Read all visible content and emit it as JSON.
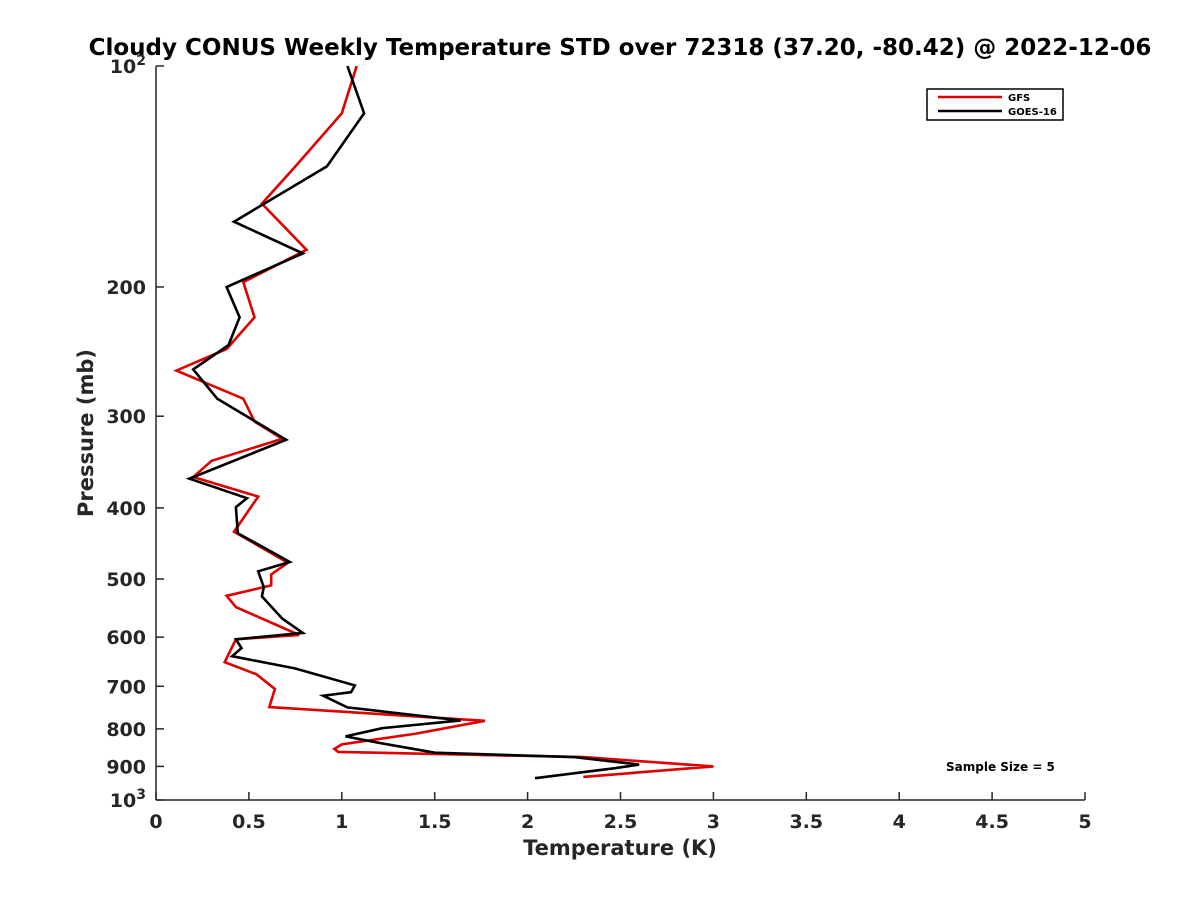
{
  "chart_data": {
    "type": "line",
    "title": "Cloudy CONUS Weekly Temperature STD over 72318 (37.20, -80.42) @ 2022-12-06",
    "xlabel": "Temperature (K)",
    "ylabel": "Pressure (mb)",
    "xlim": [
      0,
      5
    ],
    "ylim": [
      100,
      1000
    ],
    "y_scale": "log",
    "y_reversed": true,
    "x_ticks": [
      "0",
      "0.5",
      "1",
      "1.5",
      "2",
      "2.5",
      "3",
      "3.5",
      "4",
      "4.5",
      "5"
    ],
    "x_tick_values": [
      0,
      0.5,
      1,
      1.5,
      2,
      2.5,
      3,
      3.5,
      4,
      4.5,
      5
    ],
    "y_ticks": [
      {
        "value": 100,
        "label": "10",
        "sup": "2"
      },
      {
        "value": 200,
        "label": "200",
        "sup": ""
      },
      {
        "value": 300,
        "label": "300",
        "sup": ""
      },
      {
        "value": 400,
        "label": "400",
        "sup": ""
      },
      {
        "value": 500,
        "label": "500",
        "sup": ""
      },
      {
        "value": 600,
        "label": "600",
        "sup": ""
      },
      {
        "value": 700,
        "label": "700",
        "sup": ""
      },
      {
        "value": 800,
        "label": "800",
        "sup": ""
      },
      {
        "value": 900,
        "label": "900",
        "sup": ""
      },
      {
        "value": 1000,
        "label": "10",
        "sup": "3"
      }
    ],
    "grid": false,
    "legend_position": "top-right",
    "annotation": "Sample Size = 5",
    "series": [
      {
        "name": "GFS",
        "color": "#e00000",
        "points": [
          [
            1.08,
            100
          ],
          [
            1.0,
            116
          ],
          [
            0.75,
            137
          ],
          [
            0.57,
            154
          ],
          [
            0.81,
            178
          ],
          [
            0.47,
            197
          ],
          [
            0.53,
            220
          ],
          [
            0.38,
            243
          ],
          [
            0.11,
            260
          ],
          [
            0.47,
            284
          ],
          [
            0.53,
            305
          ],
          [
            0.68,
            322
          ],
          [
            0.3,
            345
          ],
          [
            0.2,
            363
          ],
          [
            0.55,
            386
          ],
          [
            0.42,
            431
          ],
          [
            0.71,
            475
          ],
          [
            0.62,
            493
          ],
          [
            0.62,
            510
          ],
          [
            0.38,
            527
          ],
          [
            0.43,
            546
          ],
          [
            0.77,
            596
          ],
          [
            0.43,
            604
          ],
          [
            0.37,
            649
          ],
          [
            0.54,
            674
          ],
          [
            0.64,
            706
          ],
          [
            0.61,
            747
          ],
          [
            1.77,
            780
          ],
          [
            1.4,
            812
          ],
          [
            1.0,
            840
          ],
          [
            0.96,
            852
          ],
          [
            0.98,
            860
          ],
          [
            2.3,
            874
          ],
          [
            3.0,
            900
          ],
          [
            2.3,
            930
          ]
        ]
      },
      {
        "name": "GOES-16",
        "color": "#000000",
        "points": [
          [
            1.03,
            100
          ],
          [
            1.12,
            116
          ],
          [
            0.92,
            137
          ],
          [
            0.42,
            163
          ],
          [
            0.79,
            180
          ],
          [
            0.38,
            200
          ],
          [
            0.45,
            220
          ],
          [
            0.39,
            240
          ],
          [
            0.2,
            259
          ],
          [
            0.33,
            284
          ],
          [
            0.7,
            323
          ],
          [
            0.18,
            365
          ],
          [
            0.49,
            388
          ],
          [
            0.43,
            399
          ],
          [
            0.44,
            433
          ],
          [
            0.72,
            474
          ],
          [
            0.55,
            488
          ],
          [
            0.58,
            513
          ],
          [
            0.57,
            528
          ],
          [
            0.68,
            566
          ],
          [
            0.79,
            592
          ],
          [
            0.43,
            604
          ],
          [
            0.46,
            621
          ],
          [
            0.41,
            637
          ],
          [
            0.75,
            662
          ],
          [
            1.07,
            698
          ],
          [
            1.05,
            713
          ],
          [
            0.9,
            721
          ],
          [
            1.03,
            748
          ],
          [
            1.64,
            779
          ],
          [
            1.22,
            798
          ],
          [
            1.02,
            819
          ],
          [
            1.19,
            835
          ],
          [
            1.5,
            862
          ],
          [
            2.25,
            874
          ],
          [
            2.6,
            895
          ],
          [
            2.47,
            905
          ],
          [
            2.04,
            934
          ]
        ]
      }
    ]
  }
}
